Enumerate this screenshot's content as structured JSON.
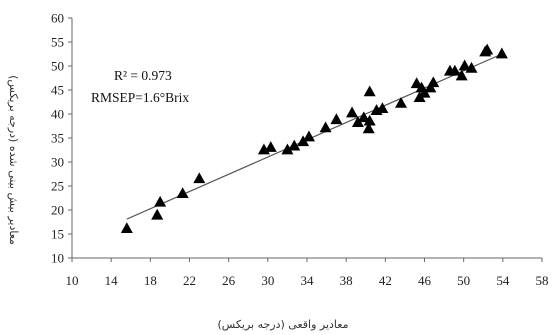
{
  "chart_data": {
    "type": "scatter",
    "xlabel": "معادیر واقعی (درجه بریکس)",
    "ylabel": "معادیر بیش بینی شده (درجه بریکس)",
    "xlim": [
      10,
      58
    ],
    "ylim": [
      10,
      60
    ],
    "x_ticks": [
      "10",
      "14",
      "18",
      "22",
      "26",
      "30",
      "34",
      "38",
      "42",
      "46",
      "50",
      "54",
      "58"
    ],
    "y_ticks": [
      "10",
      "15",
      "20",
      "25",
      "30",
      "35",
      "40",
      "45",
      "50",
      "55",
      "60"
    ],
    "grid": false,
    "marker": "triangle",
    "annotations": [
      "R² = 0.973",
      "RMSEP=1.6°Brix"
    ],
    "points": [
      {
        "x": 15.6,
        "y": 16.2
      },
      {
        "x": 18.7,
        "y": 19.0
      },
      {
        "x": 19.0,
        "y": 21.7
      },
      {
        "x": 21.3,
        "y": 23.5
      },
      {
        "x": 23.0,
        "y": 26.6
      },
      {
        "x": 29.6,
        "y": 32.6
      },
      {
        "x": 30.3,
        "y": 33.1
      },
      {
        "x": 32.0,
        "y": 32.6
      },
      {
        "x": 32.7,
        "y": 33.4
      },
      {
        "x": 33.6,
        "y": 34.3
      },
      {
        "x": 34.2,
        "y": 35.3
      },
      {
        "x": 35.9,
        "y": 37.2
      },
      {
        "x": 37.0,
        "y": 38.9
      },
      {
        "x": 38.6,
        "y": 40.3
      },
      {
        "x": 39.2,
        "y": 38.3
      },
      {
        "x": 39.8,
        "y": 39.3
      },
      {
        "x": 40.3,
        "y": 37.0
      },
      {
        "x": 40.4,
        "y": 38.6
      },
      {
        "x": 40.4,
        "y": 44.7
      },
      {
        "x": 41.1,
        "y": 40.8
      },
      {
        "x": 41.7,
        "y": 41.2
      },
      {
        "x": 43.6,
        "y": 42.3
      },
      {
        "x": 45.2,
        "y": 46.4
      },
      {
        "x": 45.5,
        "y": 43.5
      },
      {
        "x": 45.7,
        "y": 45.5
      },
      {
        "x": 46.0,
        "y": 44.4
      },
      {
        "x": 46.6,
        "y": 45.5
      },
      {
        "x": 46.9,
        "y": 46.6
      },
      {
        "x": 48.6,
        "y": 49.0
      },
      {
        "x": 49.1,
        "y": 49.0
      },
      {
        "x": 49.8,
        "y": 48.0
      },
      {
        "x": 50.1,
        "y": 50.1
      },
      {
        "x": 50.8,
        "y": 49.6
      },
      {
        "x": 52.2,
        "y": 53.0
      },
      {
        "x": 52.4,
        "y": 53.4
      },
      {
        "x": 53.9,
        "y": 52.6
      }
    ],
    "trendline": {
      "x": [
        15.6,
        53.9
      ],
      "y": [
        18.1,
        52.5
      ]
    }
  }
}
